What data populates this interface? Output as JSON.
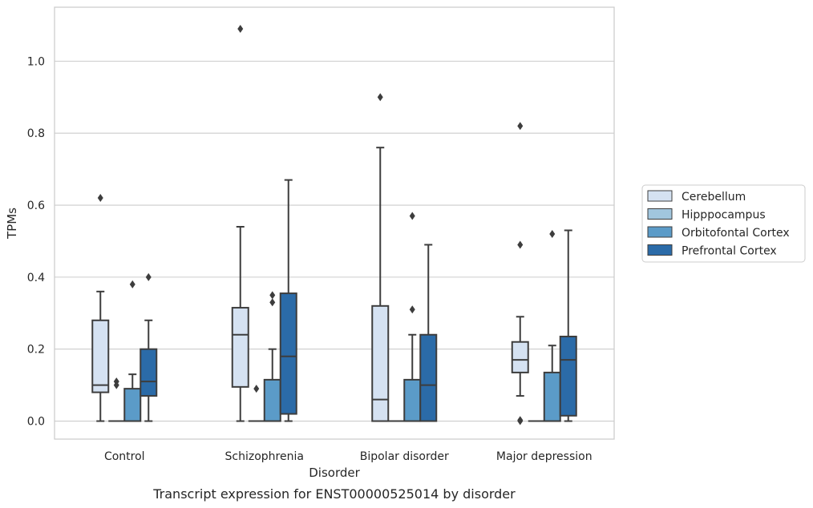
{
  "chart_data": {
    "type": "box",
    "title": "",
    "caption": "Transcript expression for ENST00000525014 by disorder",
    "xlabel": "Disorder",
    "ylabel": "TPMs",
    "ylim": [
      -0.05,
      1.15
    ],
    "yticks": [
      0.0,
      0.2,
      0.4,
      0.6,
      0.8,
      1.0
    ],
    "ytick_labels": [
      "0.0",
      "0.2",
      "0.4",
      "0.6",
      "0.8",
      "1.0"
    ],
    "grid": "horizontal",
    "legend_position": "right",
    "categories": [
      "Control",
      "Schizophrenia",
      "Bipolar disorder",
      "Major depression"
    ],
    "series": [
      {
        "name": "Cerebellum",
        "color": "#d5e2f2",
        "boxes": [
          {
            "q1": 0.08,
            "median": 0.1,
            "q3": 0.28,
            "whislo": 0.0,
            "whishi": 0.36,
            "fliers": [
              0.62
            ]
          },
          {
            "q1": 0.095,
            "median": 0.24,
            "q3": 0.315,
            "whislo": 0.0,
            "whishi": 0.54,
            "fliers": [
              1.09
            ]
          },
          {
            "q1": 0.0,
            "median": 0.06,
            "q3": 0.32,
            "whislo": 0.0,
            "whishi": 0.76,
            "fliers": [
              0.9
            ]
          },
          {
            "q1": 0.135,
            "median": 0.17,
            "q3": 0.22,
            "whislo": 0.07,
            "whishi": 0.29,
            "fliers": [
              0.49,
              0.82,
              0.0,
              0.003
            ]
          }
        ]
      },
      {
        "name": "Hipppocampus",
        "color": "#a1c6de",
        "boxes": [
          {
            "q1": 0.0,
            "median": 0.0,
            "q3": 0.0,
            "whislo": 0.0,
            "whishi": 0.0,
            "fliers": [
              0.1,
              0.11
            ]
          },
          {
            "q1": 0.0,
            "median": 0.0,
            "q3": 0.0,
            "whislo": 0.0,
            "whishi": 0.0,
            "fliers": [
              0.09
            ]
          },
          {
            "q1": 0.0,
            "median": 0.0,
            "q3": 0.0,
            "whislo": 0.0,
            "whishi": 0.0,
            "fliers": []
          },
          {
            "q1": 0.0,
            "median": 0.0,
            "q3": 0.0,
            "whislo": 0.0,
            "whishi": 0.0,
            "fliers": []
          }
        ]
      },
      {
        "name": "Orbitofontal Cortex",
        "color": "#5b9bc8",
        "boxes": [
          {
            "q1": 0.0,
            "median": 0.0,
            "q3": 0.09,
            "whislo": 0.0,
            "whishi": 0.13,
            "fliers": [
              0.38
            ]
          },
          {
            "q1": 0.0,
            "median": 0.0,
            "q3": 0.115,
            "whislo": 0.0,
            "whishi": 0.2,
            "fliers": [
              0.33,
              0.35
            ]
          },
          {
            "q1": 0.0,
            "median": 0.0,
            "q3": 0.115,
            "whislo": 0.0,
            "whishi": 0.24,
            "fliers": [
              0.31,
              0.57
            ]
          },
          {
            "q1": 0.0,
            "median": 0.0,
            "q3": 0.135,
            "whislo": 0.0,
            "whishi": 0.21,
            "fliers": [
              0.52
            ]
          }
        ]
      },
      {
        "name": "Prefrontal Cortex",
        "color": "#2b6ba8",
        "boxes": [
          {
            "q1": 0.07,
            "median": 0.11,
            "q3": 0.2,
            "whislo": 0.0,
            "whishi": 0.28,
            "fliers": [
              0.4
            ]
          },
          {
            "q1": 0.02,
            "median": 0.18,
            "q3": 0.355,
            "whislo": 0.0,
            "whishi": 0.67,
            "fliers": []
          },
          {
            "q1": 0.0,
            "median": 0.1,
            "q3": 0.24,
            "whislo": 0.0,
            "whishi": 0.49,
            "fliers": []
          },
          {
            "q1": 0.015,
            "median": 0.17,
            "q3": 0.235,
            "whislo": 0.0,
            "whishi": 0.53,
            "fliers": []
          }
        ]
      }
    ]
  }
}
